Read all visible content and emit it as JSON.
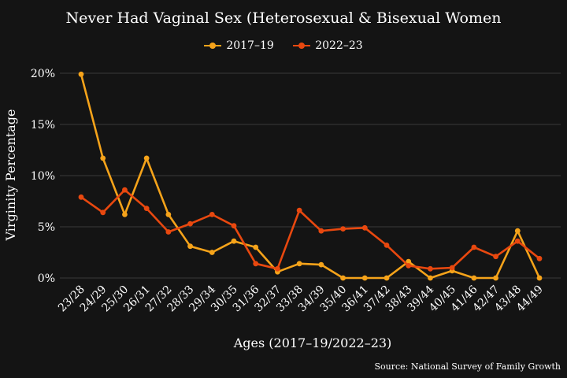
{
  "title": "Never Had Vaginal Sex (Heterosexual & Bisexual Women",
  "source": "Source: National Survey of Family Growth",
  "colors": {
    "background": "#141414",
    "grid": "#3a3a3a",
    "text": "#ffffff"
  },
  "chart_data": {
    "type": "line",
    "title": "Never Had Vaginal Sex (Heterosexual & Bisexual Women",
    "xlabel": "Ages (2017–19/2022–23)",
    "ylabel": "Virginity Percentage",
    "categories": [
      "23/28",
      "24/29",
      "25/30",
      "26/31",
      "27/32",
      "28/33",
      "29/34",
      "30/35",
      "31/36",
      "32/37",
      "33/38",
      "34/39",
      "35/40",
      "36/41",
      "37/42",
      "38/43",
      "39/44",
      "40/45",
      "41/46",
      "42/47",
      "43/48",
      "44/49"
    ],
    "y_ticks": [
      "0%",
      "5%",
      "10%",
      "15%",
      "20%"
    ],
    "ylim": [
      0,
      20
    ],
    "grid": "horizontal",
    "legend_position": "top",
    "series": [
      {
        "name": "2017–19",
        "color": "#f5a31a",
        "values": [
          19.9,
          11.7,
          6.2,
          11.7,
          6.2,
          3.1,
          2.5,
          3.6,
          3.0,
          0.6,
          1.4,
          1.3,
          0.0,
          0.0,
          0.0,
          1.6,
          0.0,
          0.7,
          0.0,
          0.0,
          4.6,
          0.0
        ]
      },
      {
        "name": "2022–23",
        "color": "#e8480f",
        "values": [
          7.9,
          6.4,
          8.6,
          6.8,
          4.5,
          5.3,
          6.2,
          5.1,
          1.4,
          0.9,
          6.6,
          4.6,
          4.8,
          4.9,
          3.2,
          1.2,
          0.9,
          1.0,
          3.0,
          2.1,
          3.6,
          1.9
        ]
      }
    ]
  }
}
